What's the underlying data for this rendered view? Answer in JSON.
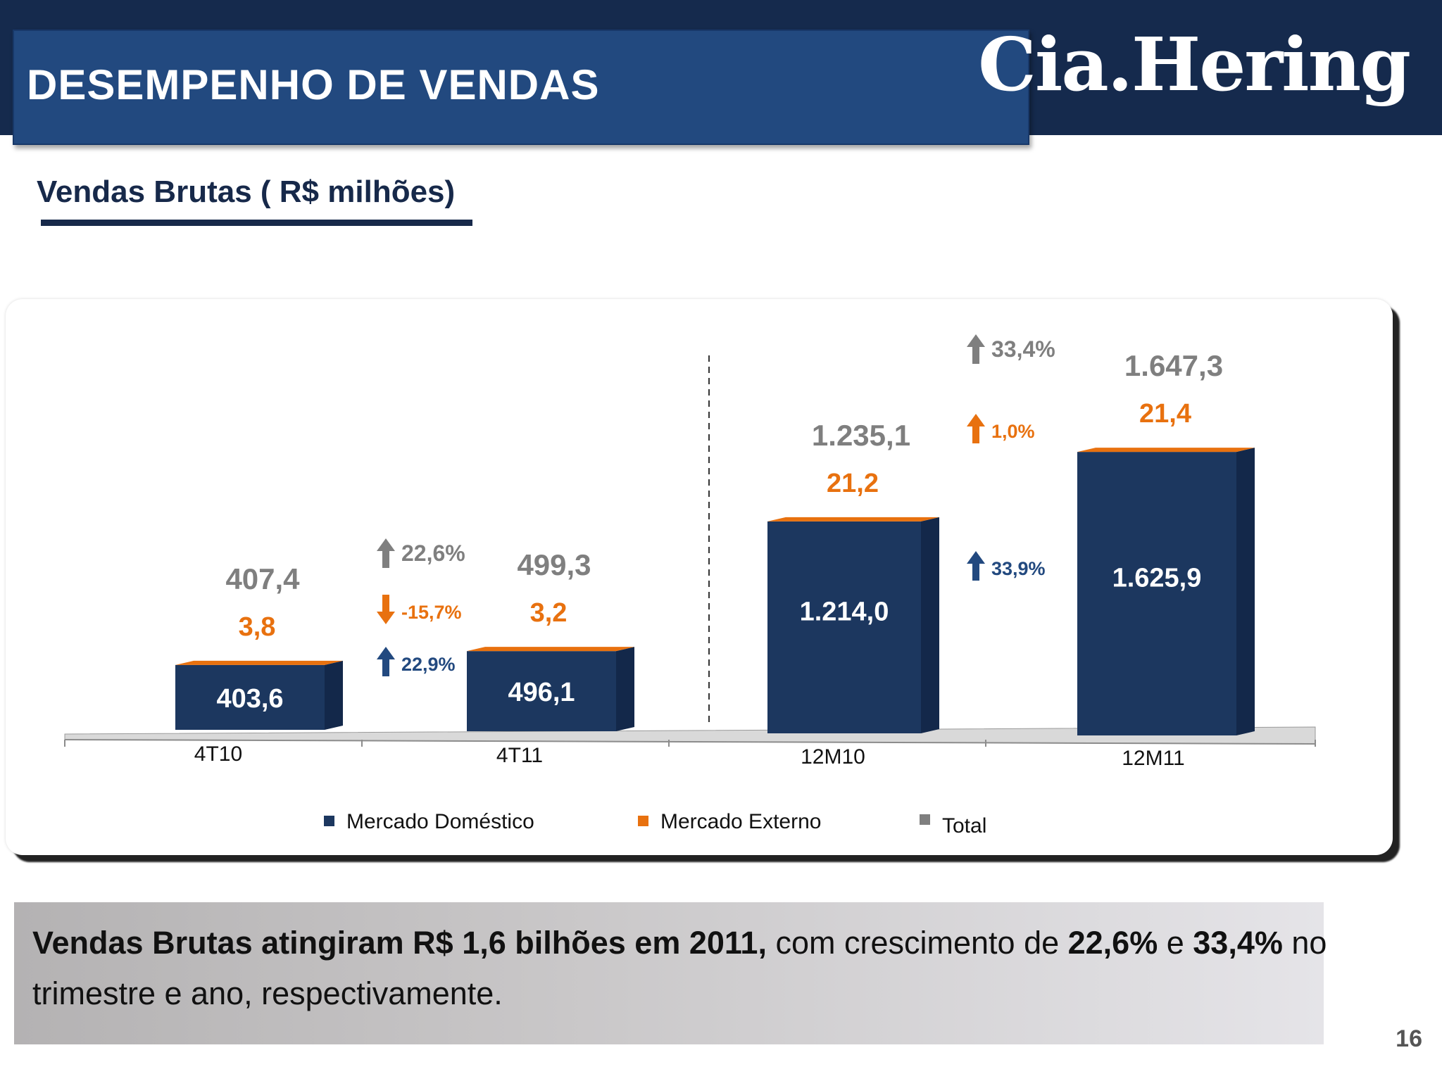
{
  "header": {
    "title": "DESEMPENHO DE VENDAS",
    "logo_text": "Cia.Hering",
    "bar_color": "#152a4d",
    "title_box_color": "#22497f"
  },
  "subtitle": "Vendas Brutas ( R$ milhões)",
  "chart_data": {
    "type": "bar",
    "stacked": true,
    "categories": [
      "4T10",
      "4T11",
      "12M10",
      "12M11"
    ],
    "series": [
      {
        "name": "Mercado Doméstico",
        "color": "#1c375f",
        "values": [
          403.6,
          496.1,
          1214.0,
          1625.9
        ],
        "labels": [
          "403,6",
          "496,1",
          "1.214,0",
          "1.625,9"
        ]
      },
      {
        "name": "Mercado Externo",
        "color": "#e8710f",
        "values": [
          3.8,
          3.2,
          21.2,
          21.4
        ],
        "labels": [
          "3,8",
          "3,2",
          "21,2",
          "21,4"
        ]
      },
      {
        "name": "Total",
        "color": "#7f7f7f",
        "values": [
          407.4,
          499.3,
          1235.1,
          1647.3
        ],
        "labels": [
          "407,4",
          "499,3",
          "1.235,1",
          "1.647,3"
        ]
      }
    ],
    "growth": [
      {
        "between": [
          "4T10",
          "4T11"
        ],
        "total": {
          "label": "22,6%",
          "direction": "up"
        },
        "externo": {
          "label": "-15,7%",
          "direction": "down"
        },
        "domestico": {
          "label": "22,9%",
          "direction": "up"
        }
      },
      {
        "between": [
          "12M10",
          "12M11"
        ],
        "total": {
          "label": "33,4%",
          "direction": "up"
        },
        "externo": {
          "label": "1,0%",
          "direction": "up"
        },
        "domestico": {
          "label": "33,9%",
          "direction": "up"
        }
      }
    ],
    "legend_position": "bottom",
    "grid": false
  },
  "summary": {
    "bold_1": "Vendas Brutas atingiram R$ 1,6 bilhões em 2011,",
    "text_1": " com crescimento de ",
    "bold_2": "22,6%",
    "text_2": " e ",
    "bold_3": "33,4%",
    "text_3": " no trimestre e ano, respectivamente."
  },
  "page_number": "16"
}
